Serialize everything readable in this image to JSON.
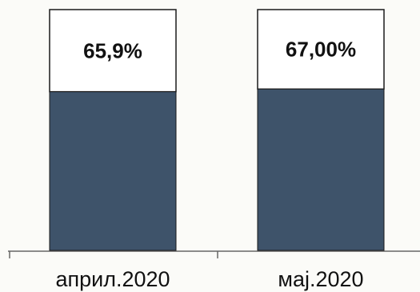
{
  "chart_data": {
    "type": "bar",
    "stacked_to_100": true,
    "categories": [
      "април.2020",
      "мај.2020"
    ],
    "values": [
      65.9,
      67.0
    ],
    "data_labels": [
      "65,9%",
      "67,00%"
    ],
    "ylim": [
      0,
      100
    ],
    "title": "",
    "xlabel": "",
    "ylabel": "",
    "grid": false,
    "colors": {
      "bar_fill": "#3e536a",
      "remainder_fill": "#ffffff",
      "outline": "#1a1a1a",
      "axis": "#555555"
    }
  }
}
